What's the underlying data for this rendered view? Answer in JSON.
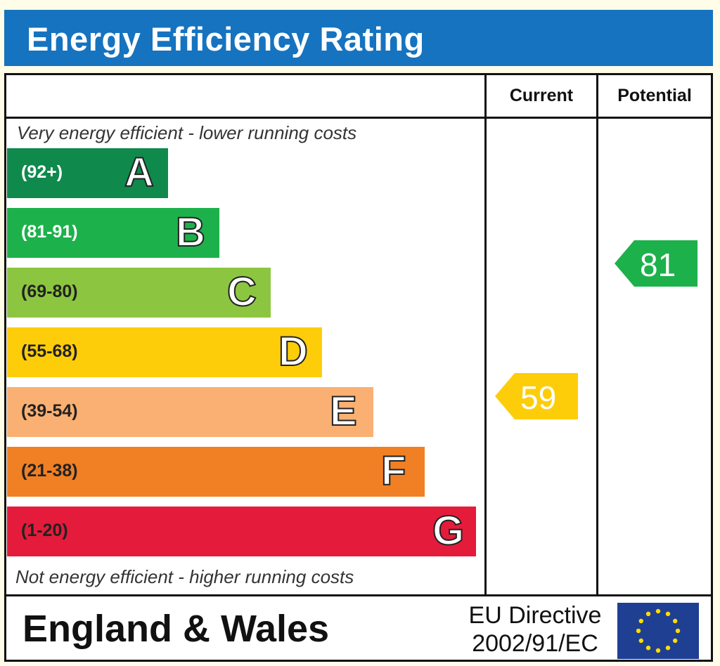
{
  "title": "Energy Efficiency Rating",
  "columns": {
    "current": "Current",
    "potential": "Potential"
  },
  "top_note": "Very energy efficient - lower running costs",
  "bottom_note": "Not energy efficient - higher running costs",
  "bands": [
    {
      "letter": "A",
      "range": "(92+)",
      "color": "#0f8a4c",
      "range_color": "#ffffff"
    },
    {
      "letter": "B",
      "range": "(81-91)",
      "color": "#1db14b",
      "range_color": "#ffffff"
    },
    {
      "letter": "C",
      "range": "(69-80)",
      "color": "#8cc640",
      "range_color": "#222222"
    },
    {
      "letter": "D",
      "range": "(55-68)",
      "color": "#fecd0a",
      "range_color": "#222222"
    },
    {
      "letter": "E",
      "range": "(39-54)",
      "color": "#f9b072",
      "range_color": "#222222"
    },
    {
      "letter": "F",
      "range": "(21-38)",
      "color": "#f08023",
      "range_color": "#222222"
    },
    {
      "letter": "G",
      "range": "(1-20)",
      "color": "#e51b3b",
      "range_color": "#222222"
    }
  ],
  "current_rating": {
    "value": "59",
    "band": "D",
    "color": "#fecd0a"
  },
  "potential_rating": {
    "value": "81",
    "band": "B",
    "color": "#1db14b"
  },
  "footer": {
    "region": "England & Wales",
    "directive_line1": "EU Directive",
    "directive_line2": "2002/91/EC"
  },
  "flag_icon": "eu-flag-icon",
  "colors": {
    "title_bar": "#1673bf",
    "flag_blue": "#1f3f93",
    "flag_star": "#ffdd00"
  }
}
